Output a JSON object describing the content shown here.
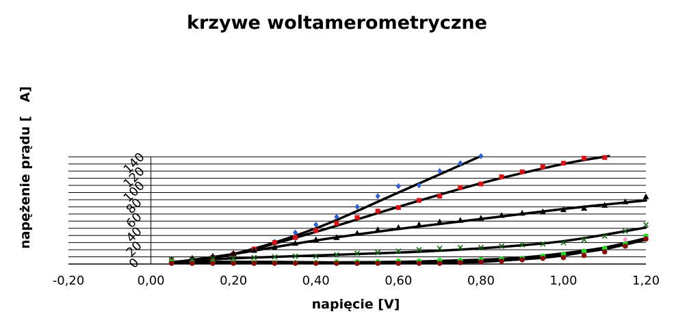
{
  "chart_data": {
    "type": "scatter",
    "title": "krzywe woltamerometryczne",
    "xlabel": "napięcie [V]",
    "ylabel": "napężenie prądu [   A]",
    "xlim": [
      -0.2,
      1.2
    ],
    "ylim": [
      0,
      152
    ],
    "grid": "horizontal",
    "legend": "none",
    "x_ticks": [
      "-0,20",
      "0,00",
      "0,20",
      "0,40",
      "0,60",
      "0,80",
      "1,00",
      "1,20"
    ],
    "y_ticks": [
      "0",
      "20",
      "40",
      "60",
      "80",
      "100",
      "120",
      "140"
    ],
    "series": [
      {
        "color": "#2f5fd6",
        "marker": "diamond",
        "x": [
          0.05,
          0.1,
          0.15,
          0.2,
          0.25,
          0.3,
          0.35,
          0.4,
          0.45,
          0.5,
          0.55,
          0.6,
          0.65,
          0.7,
          0.75,
          0.8
        ],
        "y": [
          5,
          6,
          10,
          14,
          20,
          31,
          44,
          55,
          66,
          80,
          95,
          109,
          110,
          130,
          141,
          151
        ],
        "trend": [
          [
            0.05,
            2
          ],
          [
            0.2,
            14
          ],
          [
            0.4,
            50
          ],
          [
            0.6,
            100
          ],
          [
            0.8,
            151
          ]
        ]
      },
      {
        "color": "#dd1111",
        "marker": "square",
        "x": [
          0.05,
          0.1,
          0.15,
          0.2,
          0.25,
          0.3,
          0.35,
          0.4,
          0.45,
          0.5,
          0.55,
          0.6,
          0.65,
          0.7,
          0.75,
          0.8,
          0.85,
          0.9,
          0.95,
          1.0,
          1.05,
          1.1
        ],
        "y": [
          4,
          6,
          9,
          14,
          21,
          30,
          37,
          47,
          57,
          65,
          74,
          79,
          89,
          95,
          107,
          112,
          122,
          129,
          136,
          141,
          148,
          149
        ],
        "trend": [
          [
            0.05,
            2
          ],
          [
            0.2,
            14
          ],
          [
            0.4,
            45
          ],
          [
            0.6,
            80
          ],
          [
            0.8,
            113
          ],
          [
            1.0,
            140
          ],
          [
            1.11,
            151
          ]
        ]
      },
      {
        "color": "#000000",
        "marker": "triangle",
        "x": [
          0.05,
          0.1,
          0.15,
          0.2,
          0.25,
          0.3,
          0.35,
          0.4,
          0.45,
          0.5,
          0.55,
          0.6,
          0.65,
          0.7,
          0.75,
          0.8,
          0.85,
          0.9,
          0.95,
          1.0,
          1.05,
          1.1,
          1.15,
          1.2
        ],
        "y": [
          6,
          8,
          11,
          15,
          19,
          23,
          29,
          34,
          37,
          43,
          48,
          51,
          55,
          59,
          61,
          64,
          68,
          71,
          73,
          76,
          78,
          82,
          87,
          94
        ],
        "trend": [
          [
            0.05,
            2
          ],
          [
            0.2,
            14
          ],
          [
            0.4,
            33
          ],
          [
            0.6,
            49
          ],
          [
            0.8,
            63
          ],
          [
            1.0,
            77
          ],
          [
            1.2,
            89
          ]
        ]
      },
      {
        "color": "#116611",
        "marker": "x",
        "x": [
          0.05,
          0.1,
          0.15,
          0.2,
          0.25,
          0.3,
          0.35,
          0.4,
          0.45,
          0.5,
          0.55,
          0.6,
          0.65,
          0.7,
          0.75,
          0.8,
          0.85,
          0.9,
          0.95,
          1.0,
          1.05,
          1.1,
          1.15,
          1.2
        ],
        "y": [
          6,
          6,
          8,
          8,
          9,
          10,
          11,
          11,
          13,
          15,
          16,
          18,
          20,
          22,
          23,
          23,
          25,
          27,
          28,
          30,
          34,
          39,
          46,
          55
        ],
        "trend": [
          [
            0.05,
            3
          ],
          [
            0.2,
            8
          ],
          [
            0.4,
            12
          ],
          [
            0.6,
            16
          ],
          [
            0.8,
            22
          ],
          [
            1.0,
            32
          ],
          [
            1.2,
            51
          ]
        ]
      },
      {
        "color": "#ff99cc",
        "marker": "diamond",
        "x": [
          0.05,
          0.1,
          0.15,
          0.2,
          0.25,
          0.3,
          0.35,
          0.4,
          0.45,
          0.5,
          0.55,
          0.6,
          0.65,
          0.7,
          0.75,
          0.8,
          0.85,
          0.9,
          0.95,
          1.0,
          1.05,
          1.1,
          1.15,
          1.2
        ],
        "y": [
          3,
          2,
          2,
          2,
          2,
          2,
          2,
          2,
          2,
          2,
          2,
          2,
          3,
          3,
          3,
          3,
          4,
          5,
          8,
          11,
          16,
          22,
          34,
          35
        ],
        "trend": [
          [
            0.05,
            2
          ],
          [
            0.2,
            2
          ],
          [
            0.4,
            2
          ],
          [
            0.6,
            3
          ],
          [
            0.8,
            4
          ],
          [
            1.0,
            12
          ],
          [
            1.2,
            35
          ]
        ]
      },
      {
        "color": "#22dd22",
        "marker": "circle",
        "x": [
          0.05,
          0.1,
          0.15,
          0.2,
          0.25,
          0.3,
          0.35,
          0.4,
          0.45,
          0.5,
          0.55,
          0.6,
          0.65,
          0.7,
          0.75,
          0.8,
          0.85,
          0.9,
          0.95,
          1.0,
          1.05,
          1.1,
          1.15,
          1.2
        ],
        "y": [
          3,
          2,
          2,
          2,
          2,
          2,
          2,
          2,
          3,
          3,
          3,
          4,
          4,
          5,
          5,
          6,
          7,
          8,
          11,
          14,
          18,
          22,
          28,
          39
        ],
        "trend": [
          [
            0.05,
            2
          ],
          [
            0.4,
            2
          ],
          [
            0.6,
            3
          ],
          [
            0.8,
            6
          ],
          [
            0.9,
            9
          ],
          [
            1.0,
            15
          ],
          [
            1.1,
            23
          ],
          [
            1.2,
            36
          ]
        ]
      },
      {
        "color": "#8b0a0a",
        "marker": "circle",
        "x": [
          0.05,
          0.1,
          0.15,
          0.2,
          0.25,
          0.3,
          0.35,
          0.4,
          0.45,
          0.5,
          0.55,
          0.6,
          0.65,
          0.7,
          0.75,
          0.8,
          0.85,
          0.9,
          0.95,
          1.0,
          1.05,
          1.1,
          1.15,
          1.2
        ],
        "y": [
          1,
          1,
          1,
          1,
          1,
          1,
          1,
          1,
          1,
          1,
          1,
          1,
          1,
          1,
          2,
          3,
          4,
          6,
          8,
          9,
          12,
          17,
          25,
          35
        ],
        "trend": [
          [
            0.05,
            3
          ],
          [
            0.3,
            3
          ],
          [
            0.5,
            2
          ],
          [
            0.7,
            2
          ],
          [
            0.8,
            3
          ],
          [
            0.9,
            7
          ],
          [
            1.0,
            13
          ],
          [
            1.1,
            21
          ],
          [
            1.2,
            34
          ]
        ]
      }
    ]
  }
}
